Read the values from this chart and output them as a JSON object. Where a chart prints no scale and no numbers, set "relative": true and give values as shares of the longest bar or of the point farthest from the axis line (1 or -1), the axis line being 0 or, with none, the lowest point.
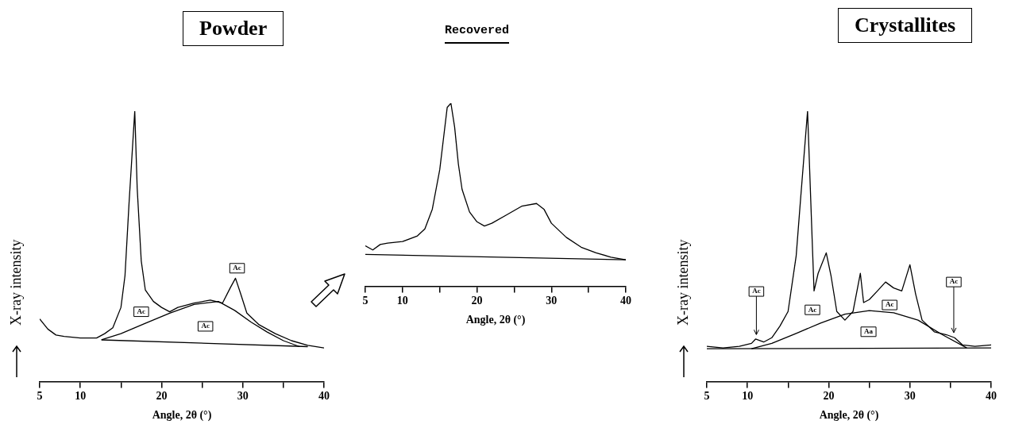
{
  "chart_data": [
    {
      "type": "line",
      "title": "Powder",
      "xlabel": "Angle, 2θ (°)",
      "ylabel": "X-ray intensity",
      "relative": true,
      "xlim": [
        5,
        40
      ],
      "xticks": [
        5,
        10,
        {
          "value": 15,
          "label": null
        },
        20,
        {
          "value": 25,
          "label": null
        },
        30,
        {
          "value": 35,
          "label": null
        },
        40
      ],
      "grid": false,
      "legend": false,
      "marker": "none",
      "series": [
        {
          "color": "#000000",
          "x": [
            5,
            6,
            7,
            8,
            10,
            12,
            13,
            14,
            15,
            15.5,
            16,
            16.7,
            17,
            17.5,
            18,
            19,
            20,
            21,
            22,
            24,
            26,
            27.5,
            28.5,
            29.1,
            29.7,
            30.5,
            32,
            34,
            36,
            38,
            40
          ],
          "values": [
            0.231,
            0.194,
            0.172,
            0.167,
            0.161,
            0.161,
            0.177,
            0.199,
            0.274,
            0.392,
            0.661,
            1.0,
            0.715,
            0.446,
            0.339,
            0.296,
            0.274,
            0.258,
            0.274,
            0.29,
            0.301,
            0.29,
            0.349,
            0.382,
            0.328,
            0.253,
            0.21,
            0.177,
            0.151,
            0.134,
            0.124
          ]
        },
        {
          "color": "#000000",
          "x": [
            12.6,
            38
          ],
          "values": [
            0.154,
            0.129
          ]
        },
        {
          "color": "#000000",
          "x": [
            12.6,
            15,
            18,
            21,
            24,
            27,
            29,
            31,
            33,
            35,
            37
          ],
          "values": [
            0.154,
            0.177,
            0.215,
            0.253,
            0.285,
            0.296,
            0.263,
            0.22,
            0.183,
            0.151,
            0.129
          ]
        }
      ],
      "annotations": [
        {
          "text": "Ac",
          "x": 17.5,
          "y": 0.258
        },
        {
          "text": "Ac",
          "x": 29.3,
          "y": 0.419
        },
        {
          "text": "Ac",
          "x": 25.4,
          "y": 0.204
        }
      ]
    },
    {
      "type": "line",
      "title": "Recovered",
      "xlabel": "Angle, 2θ (°)",
      "relative": true,
      "xlim": [
        5,
        40
      ],
      "xticks": [
        5,
        10,
        {
          "value": 15,
          "label": null
        },
        20,
        {
          "value": 25,
          "label": null
        },
        30,
        {
          "value": 35,
          "label": null
        },
        40
      ],
      "grid": false,
      "legend": false,
      "marker": "none",
      "series": [
        {
          "color": "#000000",
          "x": [
            5,
            6,
            7,
            8,
            10,
            12,
            13,
            14,
            15,
            15.5,
            16,
            16.5,
            17,
            17.5,
            18,
            19,
            20,
            21,
            22,
            24,
            26,
            28,
            29,
            30,
            32,
            34,
            36,
            38,
            40
          ],
          "values": [
            0.221,
            0.198,
            0.228,
            0.236,
            0.244,
            0.275,
            0.313,
            0.421,
            0.637,
            0.807,
            0.977,
            1.0,
            0.869,
            0.668,
            0.529,
            0.406,
            0.352,
            0.329,
            0.344,
            0.39,
            0.437,
            0.452,
            0.421,
            0.344,
            0.267,
            0.213,
            0.182,
            0.159,
            0.144
          ]
        },
        {
          "color": "#000000",
          "x": [
            5,
            40
          ],
          "values": [
            0.174,
            0.144
          ]
        }
      ]
    },
    {
      "type": "line",
      "title": "Crystallites",
      "xlabel": "Angle, 2θ (°)",
      "ylabel": "X-ray intensity",
      "relative": true,
      "xlim": [
        5,
        40
      ],
      "xticks": [
        5,
        10,
        {
          "value": 15,
          "label": null
        },
        20,
        {
          "value": 25,
          "label": null
        },
        30,
        {
          "value": 35,
          "label": null
        },
        40
      ],
      "grid": false,
      "legend": false,
      "marker": "none",
      "series": [
        {
          "color": "#000000",
          "x": [
            5,
            7,
            9,
            10.5,
            11,
            12,
            13,
            14,
            15,
            16,
            16.5,
            17.4,
            18,
            18.2,
            18.7,
            19.7,
            20.3,
            21,
            22,
            23,
            23.9,
            24.3,
            25,
            26,
            27,
            28,
            29,
            30,
            30.7,
            31.5,
            33,
            34.5,
            35.5,
            36.5,
            38,
            40
          ],
          "values": [
            0.13,
            0.124,
            0.13,
            0.141,
            0.157,
            0.146,
            0.162,
            0.205,
            0.259,
            0.465,
            0.659,
            1.0,
            0.497,
            0.335,
            0.4,
            0.476,
            0.389,
            0.259,
            0.227,
            0.259,
            0.4,
            0.292,
            0.303,
            0.335,
            0.368,
            0.346,
            0.335,
            0.432,
            0.324,
            0.227,
            0.184,
            0.173,
            0.162,
            0.135,
            0.13,
            0.135
          ]
        },
        {
          "color": "#000000",
          "x": [
            5,
            40
          ],
          "values": [
            0.121,
            0.124
          ]
        },
        {
          "color": "#000000",
          "x": [
            10.5,
            13,
            16,
            19,
            22,
            25,
            28,
            31,
            34,
            37
          ],
          "values": [
            0.121,
            0.141,
            0.178,
            0.216,
            0.249,
            0.262,
            0.254,
            0.227,
            0.173,
            0.124
          ]
        }
      ],
      "annotations": [
        {
          "text": "Ac",
          "x": 11.1,
          "y": 0.333
        },
        {
          "text": "Ac",
          "x": 18,
          "y": 0.265
        },
        {
          "text": "Ac",
          "x": 27.5,
          "y": 0.283
        },
        {
          "text": "Aa",
          "x": 24.9,
          "y": 0.184
        },
        {
          "text": "Ac",
          "x": 35.4,
          "y": 0.368
        }
      ]
    }
  ]
}
